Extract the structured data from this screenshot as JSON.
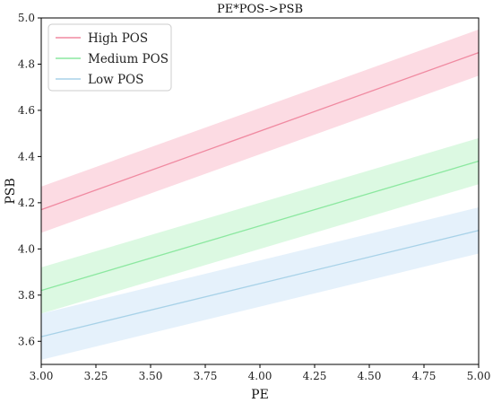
{
  "chart_data": {
    "type": "line",
    "title": "PE*POS->PSB",
    "xlabel": "PE",
    "ylabel": "PSB",
    "xlim": [
      3.0,
      5.0
    ],
    "ylim": [
      3.5,
      5.0
    ],
    "xticks": [
      "3.00",
      "3.25",
      "3.50",
      "3.75",
      "4.00",
      "4.25",
      "4.50",
      "4.75",
      "5.00"
    ],
    "yticks": [
      "3.6",
      "3.8",
      "4.0",
      "4.2",
      "4.4",
      "4.6",
      "4.8",
      "5.0"
    ],
    "grid": false,
    "legend_position": "top-left",
    "series": [
      {
        "name": "High POS",
        "color": "#f08aa1",
        "band_color": "#fcdbe3",
        "x": [
          3.0,
          5.0
        ],
        "y": [
          4.17,
          4.85
        ],
        "lower": [
          4.07,
          4.75
        ],
        "upper": [
          4.27,
          4.95
        ]
      },
      {
        "name": "Medium POS",
        "color": "#8ce8a0",
        "band_color": "#dcf9e2",
        "x": [
          3.0,
          5.0
        ],
        "y": [
          3.82,
          4.38
        ],
        "lower": [
          3.72,
          4.28
        ],
        "upper": [
          3.92,
          4.48
        ]
      },
      {
        "name": "Low POS",
        "color": "#a8d2e8",
        "band_color": "#e5f1fb",
        "x": [
          3.0,
          5.0
        ],
        "y": [
          3.62,
          4.08
        ],
        "lower": [
          3.52,
          3.98
        ],
        "upper": [
          3.72,
          4.18
        ]
      }
    ]
  }
}
